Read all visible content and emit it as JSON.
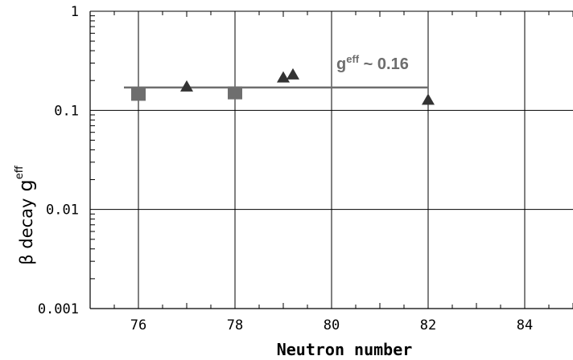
{
  "chart_data": {
    "type": "scatter",
    "title": "",
    "xlabel": "Neutron number",
    "ylabel_main": "β decay",
    "ylabel_symbol": "g",
    "ylabel_sup": "eff",
    "xlim": [
      75,
      85
    ],
    "ylim": [
      0.001,
      1
    ],
    "yscale": "log",
    "grid": true,
    "x_ticks": [
      76,
      78,
      80,
      82,
      84
    ],
    "x_tick_labels": [
      "76",
      "78",
      "80",
      "82",
      "84"
    ],
    "y_ticks": [
      0.001,
      0.01,
      0.1,
      1
    ],
    "y_tick_labels": [
      "0.001",
      "0.01",
      "0.1",
      "1"
    ],
    "series": [
      {
        "marker": "square",
        "color": "#6e6e6e",
        "x": [
          76,
          78
        ],
        "y": [
          0.145,
          0.15
        ]
      },
      {
        "marker": "triangle",
        "color": "#333333",
        "x": [
          77,
          79,
          79.2,
          82
        ],
        "y": [
          0.17,
          0.21,
          0.225,
          0.125
        ]
      }
    ],
    "reference_line": {
      "y": 0.17,
      "x_from": 75.7,
      "x_to": 82,
      "color": "#6e6e6e"
    },
    "annotation": {
      "base": "g",
      "sup": "eff",
      "text": " ~ 0.16",
      "x": 80.05,
      "y": 0.24
    }
  }
}
